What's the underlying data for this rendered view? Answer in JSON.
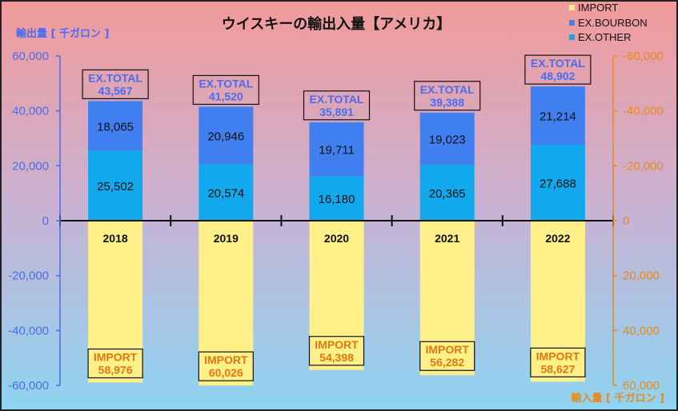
{
  "chart_data": {
    "type": "bar",
    "title": "ウイスキーの輸出入量【アメリカ】",
    "ylabel_left": "輸出量 [ 千ガロン ]",
    "ylabel_right": "輸入量 [ 千ガロン ]",
    "categories": [
      "2018",
      "2019",
      "2020",
      "2021",
      "2022"
    ],
    "series": [
      {
        "name": "IMPORT",
        "values": [
          58976,
          60026,
          54398,
          56282,
          58627
        ],
        "color": "#FFF08A"
      },
      {
        "name": "EX.BOURBON",
        "values": [
          18065,
          20946,
          19711,
          19023,
          21214
        ],
        "color": "#3F7FF0"
      },
      {
        "name": "EX.OTHER",
        "values": [
          25502,
          20574,
          16180,
          20365,
          27688
        ],
        "color": "#12A8EE"
      }
    ],
    "ex_total_label": "EX.TOTAL",
    "ex_total_values": [
      43567,
      41520,
      35891,
      39388,
      48902
    ],
    "import_label": "IMPORT",
    "yaxis_left": {
      "ticks": [
        "60,000",
        "40,000",
        "20,000",
        "0",
        "-20,000",
        "-40,000",
        "-60,000"
      ],
      "ylim": [
        -60000,
        60000
      ]
    },
    "yaxis_right": {
      "ticks": [
        "-60,000",
        "-40,000",
        "-20,000",
        "0",
        "20,000",
        "40,000",
        "60,000"
      ]
    },
    "legend_position": "top-right",
    "grid": false,
    "colors": {
      "left_axis": "#4A6CF0",
      "right_axis": "#E98A1A",
      "ex_total_text": "#4A6CF0",
      "import_text": "#E07A10",
      "bg_top": "#F29A9A",
      "bg_bottom": "#8ED4F2"
    }
  }
}
